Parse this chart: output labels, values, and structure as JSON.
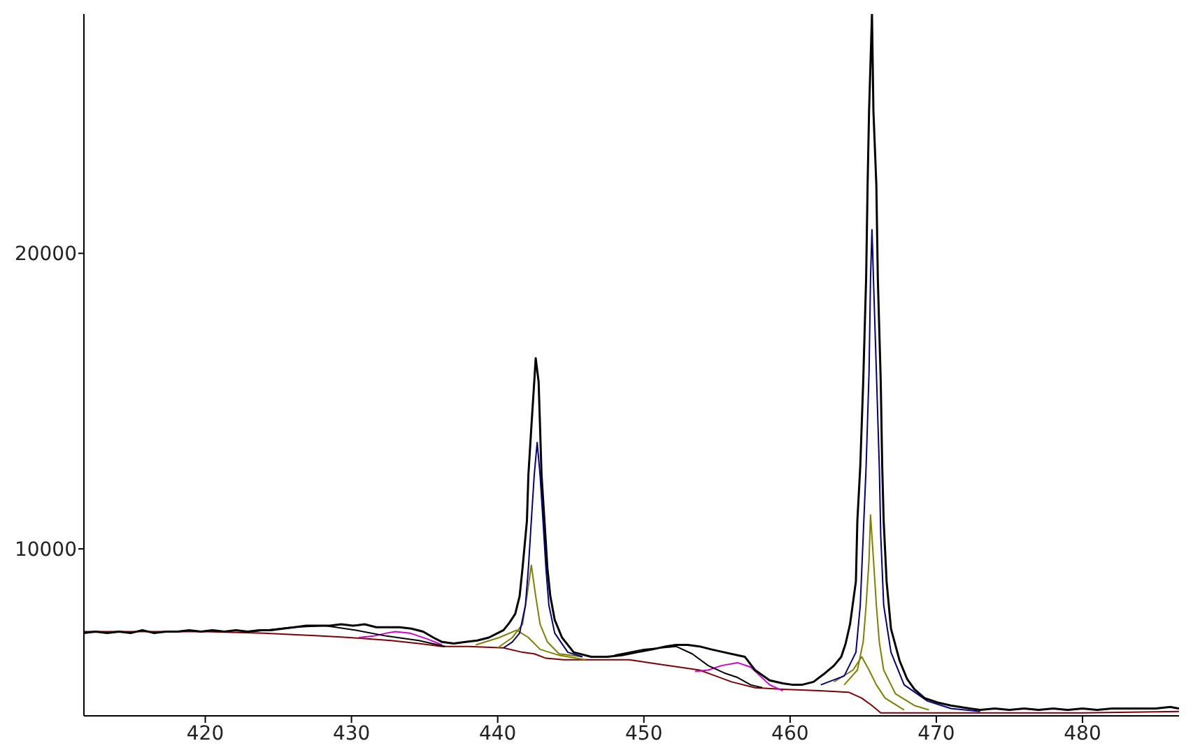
{
  "chart_data": {
    "type": "line",
    "xlim": [
      411.7,
      486.6
    ],
    "ylim": [
      4350,
      28100
    ],
    "xticks": [
      420,
      430,
      440,
      450,
      460,
      470,
      480
    ],
    "yticks": [
      10000,
      20000
    ],
    "x": [
      411.7,
      412.5,
      413.3,
      414.1,
      414.9,
      415.7,
      416.5,
      417.3,
      418.1,
      418.9,
      419.7,
      420.5,
      421.3,
      422.1,
      422.9,
      423.7,
      424.5,
      425.3,
      426.1,
      426.9,
      427.7,
      428.5,
      429.3,
      430.1,
      430.9,
      431.7,
      432.5,
      433.3,
      434.1,
      434.9,
      435.6,
      436.2,
      437.0,
      437.8,
      438.6,
      439.4,
      440.0,
      440.4,
      440.8,
      441.2,
      441.5,
      441.7,
      442.0,
      442.1,
      442.3,
      442.5,
      442.6,
      442.8,
      442.9,
      443.0,
      443.2,
      443.4,
      443.6,
      443.9,
      444.4,
      445.2,
      446.4,
      447.5,
      448.5,
      449.5,
      450.6,
      451.5,
      452.2,
      453.0,
      453.8,
      454.6,
      455.5,
      456.4,
      456.9,
      457.6,
      458.6,
      459.5,
      460.2,
      460.8,
      461.6,
      462.4,
      463.0,
      463.5,
      463.8,
      464.1,
      464.5,
      464.6,
      464.8,
      465.0,
      465.2,
      465.3,
      465.4,
      465.6,
      465.7,
      465.9,
      466.0,
      466.2,
      466.3,
      466.4,
      466.6,
      466.9,
      467.5,
      468.0,
      468.5,
      469.2,
      470.1,
      471.0,
      472.3,
      473.0,
      474.0,
      475.0,
      476.0,
      477.0,
      478.0,
      479.0,
      480.0,
      481.0,
      482.0,
      483.0,
      484.0,
      485.0,
      486.0,
      486.6
    ],
    "series": [
      {
        "color": "#800000",
        "x": [
          411.7,
          420,
          424,
          426,
          428,
          429.9,
          432.7,
          434.6,
          436.2,
          438,
          440.4,
          441.7,
          442.5,
          443.3,
          444.5,
          446,
          449,
          451,
          453.8,
          456,
          457.6,
          459.5,
          462,
          464,
          464.9,
          465.6,
          466.2,
          470,
          475,
          480,
          486.6
        ],
        "values": [
          7200,
          7200,
          7150,
          7100,
          7050,
          7000,
          6900,
          6800,
          6700,
          6700,
          6650,
          6500,
          6450,
          6300,
          6250,
          6250,
          6250,
          6100,
          5900,
          5500,
          5300,
          5250,
          5200,
          5150,
          4950,
          4700,
          4450,
          4450,
          4450,
          4450,
          4500
        ]
      },
      {
        "color": "#d000d0",
        "x": [
          430.5,
          431.5,
          432.4,
          433.0,
          434.0,
          435.2,
          436.2,
          445,
          453.5,
          454.4,
          455.3,
          456.4,
          457.3,
          458.6,
          459.5
        ],
        "values": [
          7000,
          7050,
          7150,
          7200,
          7150,
          6950,
          6750,
          null,
          5850,
          5900,
          6050,
          6150,
          6000,
          5400,
          5200
        ]
      },
      {
        "color": "#000000",
        "x": [
          423.2,
          426,
          428.2,
          430.3,
          432.4,
          434.6,
          436.4,
          445,
          448,
          450,
          452.2,
          453.3,
          454.4,
          455.5,
          456.4,
          457.3,
          458.1
        ],
        "values": [
          7200,
          7350,
          7400,
          7250,
          7050,
          6900,
          6700,
          null,
          6400,
          6600,
          6700,
          6450,
          6050,
          5800,
          5650,
          5400,
          5300
        ]
      },
      {
        "color": "#808000",
        "x": [
          438.5,
          440.1,
          441.3,
          442.1,
          442.9,
          444.2,
          446,
          454,
          463.0,
          464.3,
          464.9,
          465.4,
          465.9,
          466.5,
          467.8
        ],
        "values": [
          6750,
          7000,
          7250,
          7000,
          6600,
          6400,
          6250,
          null,
          5500,
          5900,
          6350,
          5900,
          5400,
          4950,
          4550
        ]
      },
      {
        "color": "#808000",
        "x": [
          440.0,
          441.0,
          441.7,
          442.0,
          442.3,
          442.6,
          442.9,
          443.4,
          444.2,
          445.8,
          454,
          463.7,
          464.6,
          465.0,
          465.2,
          465.4,
          465.5,
          465.7,
          465.9,
          466.1,
          466.4,
          467.2,
          468.5,
          469.5
        ],
        "values": [
          6650,
          7000,
          7450,
          8400,
          9450,
          8400,
          7450,
          6850,
          6450,
          6350,
          null,
          5400,
          5900,
          6850,
          8100,
          9650,
          11150,
          9650,
          8100,
          6850,
          5900,
          5100,
          4700,
          4550
        ]
      },
      {
        "color": "#000080",
        "x": [
          440.4,
          441.0,
          441.5,
          441.9,
          442.1,
          442.3,
          442.5,
          442.7,
          442.9,
          443.1,
          443.3,
          443.5,
          443.9,
          444.8,
          445.8,
          454,
          462.1,
          463.7,
          464.5,
          464.8,
          465.0,
          465.2,
          465.4,
          465.5,
          465.6,
          465.7,
          465.9,
          466.1,
          466.2,
          466.4,
          466.9,
          467.8,
          469.4,
          471.0,
          473.0
        ],
        "values": [
          6650,
          6850,
          7150,
          8100,
          9350,
          10950,
          12500,
          13600,
          12500,
          10950,
          9350,
          8100,
          7150,
          6500,
          6350,
          null,
          5400,
          5700,
          6500,
          8100,
          10450,
          12800,
          16000,
          19150,
          20800,
          19150,
          16000,
          12800,
          10450,
          8100,
          6500,
          5400,
          4850,
          4600,
          4500
        ]
      },
      {
        "color": "#000000",
        "values": [
          7150,
          7200,
          7150,
          7200,
          7150,
          7250,
          7150,
          7200,
          7200,
          7250,
          7200,
          7250,
          7200,
          7250,
          7200,
          7250,
          7250,
          7300,
          7350,
          7400,
          7400,
          7400,
          7450,
          7400,
          7450,
          7350,
          7350,
          7350,
          7300,
          7200,
          7000,
          6850,
          6800,
          6850,
          6900,
          7000,
          7150,
          7250,
          7500,
          7800,
          8400,
          9350,
          10950,
          12500,
          14100,
          15650,
          16450,
          15650,
          14100,
          12500,
          10950,
          9350,
          8400,
          7600,
          7000,
          6500,
          6350,
          6350,
          6400,
          6500,
          6600,
          6700,
          6750,
          6750,
          6700,
          6600,
          6500,
          6400,
          6350,
          5900,
          5550,
          5450,
          5400,
          5400,
          5500,
          5800,
          6050,
          6350,
          6800,
          7450,
          8900,
          10950,
          12800,
          15650,
          19150,
          22300,
          24800,
          28100,
          24800,
          22300,
          19150,
          15650,
          12800,
          10950,
          8900,
          7300,
          6200,
          5600,
          5250,
          4950,
          4800,
          4700,
          4600,
          4550,
          4600,
          4550,
          4600,
          4550,
          4600,
          4550,
          4600,
          4550,
          4600,
          4600,
          4600,
          4600,
          4650,
          4600
        ]
      }
    ]
  }
}
